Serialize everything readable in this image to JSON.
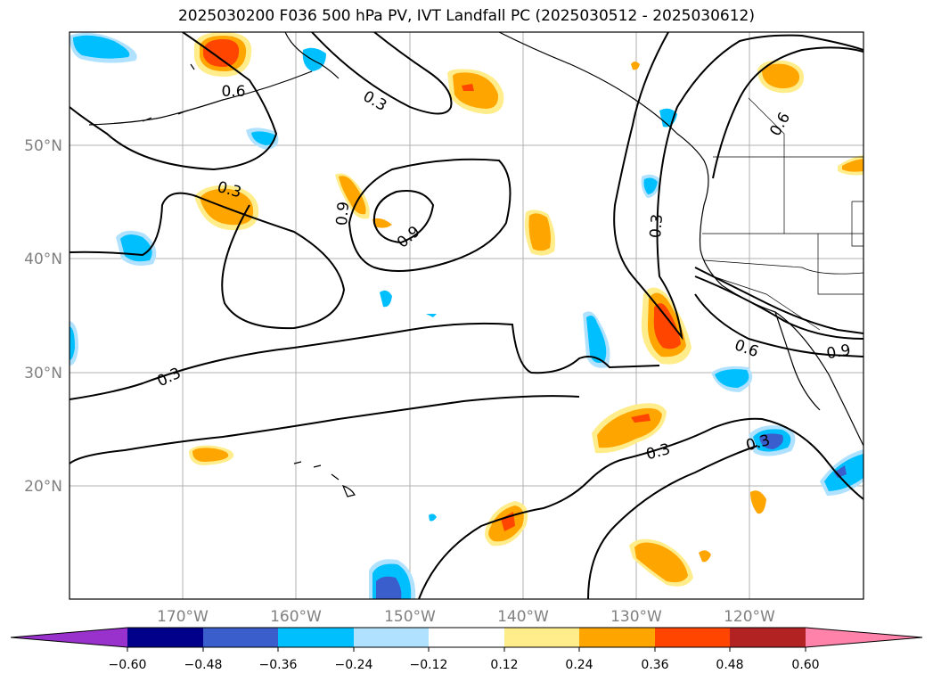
{
  "title": "2025030200 F036 500 hPa PV, IVT Landfall PC (2025030512 - 2025030612)",
  "map": {
    "lat_labels": [
      "50°N",
      "40°N",
      "30°N",
      "20°N"
    ],
    "lon_labels": [
      "170°W",
      "160°W",
      "150°W",
      "140°W",
      "130°W",
      "120°W"
    ],
    "contour_labels": [
      "0.6",
      "0.3",
      "0.3",
      "0.9",
      "0.9",
      "0.3",
      "0.6",
      "0.3",
      "0.6",
      "0.9",
      "0.3",
      "0.3"
    ]
  },
  "colorbar": {
    "ticks": [
      "−0.60",
      "−0.48",
      "−0.36",
      "−0.24",
      "−0.12",
      "0.12",
      "0.24",
      "0.36",
      "0.48",
      "0.60"
    ],
    "colors": [
      "#9932CC",
      "#00008B",
      "#3A5FCD",
      "#00BFFF",
      "#B0E2FF",
      "#FFFFFF",
      "#FFEC8B",
      "#FFA500",
      "#FF4500",
      "#B22222",
      "#FF82AB"
    ]
  }
}
